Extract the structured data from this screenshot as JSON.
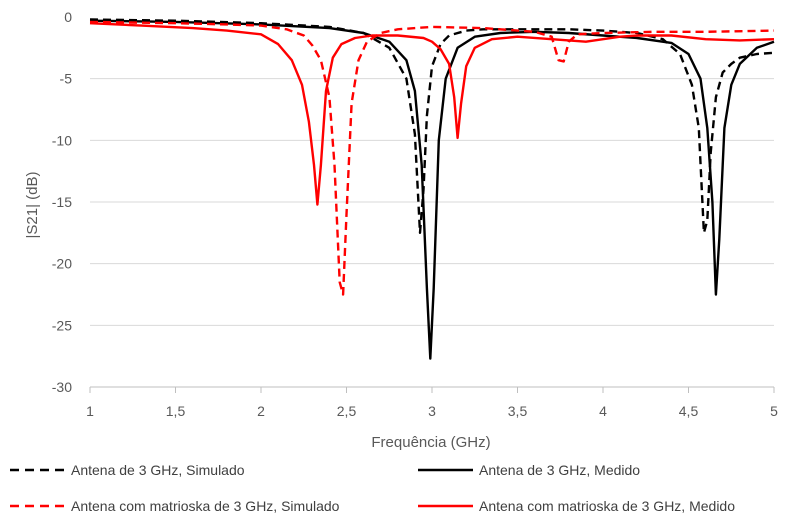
{
  "chart_data": {
    "type": "line",
    "title": "",
    "xlabel": "Frequência (GHz)",
    "ylabel": "|S21| (dB)",
    "xlim": [
      1,
      5
    ],
    "ylim": [
      -30,
      0
    ],
    "x_ticks": [
      "1",
      "1,5",
      "2",
      "2,5",
      "3",
      "3,5",
      "4",
      "4,5",
      "5"
    ],
    "y_ticks": [
      "0",
      "-5",
      "-10",
      "-15",
      "-20",
      "-25",
      "-30"
    ],
    "grid": "horizontal",
    "legend_position": "bottom",
    "series": [
      {
        "name": "Antena de 3 GHz, Simulado",
        "color": "#000000",
        "dash": "dashed",
        "x": [
          1.0,
          1.5,
          2.0,
          2.4,
          2.6,
          2.75,
          2.85,
          2.9,
          2.93,
          2.95,
          2.97,
          3.0,
          3.05,
          3.1,
          3.2,
          3.3,
          3.5,
          3.8,
          4.0,
          4.2,
          4.35,
          4.45,
          4.52,
          4.56,
          4.59,
          4.61,
          4.63,
          4.66,
          4.7,
          4.75,
          4.8,
          4.9,
          5.0
        ],
        "y": [
          -0.2,
          -0.3,
          -0.5,
          -0.8,
          -1.3,
          -2.5,
          -5.0,
          -9.5,
          -17.5,
          -14.0,
          -8.0,
          -4.0,
          -2.2,
          -1.5,
          -1.1,
          -1.0,
          -1.0,
          -1.0,
          -1.1,
          -1.3,
          -1.8,
          -3.0,
          -5.5,
          -9.0,
          -17.5,
          -16.5,
          -11.0,
          -6.5,
          -4.5,
          -3.8,
          -3.3,
          -3.0,
          -2.9
        ]
      },
      {
        "name": "Antena de 3 GHz, Medido",
        "color": "#000000",
        "dash": "solid",
        "x": [
          1.0,
          1.5,
          2.0,
          2.4,
          2.6,
          2.75,
          2.85,
          2.9,
          2.94,
          2.97,
          2.99,
          3.01,
          3.04,
          3.08,
          3.15,
          3.25,
          3.4,
          3.6,
          3.8,
          4.0,
          4.2,
          4.4,
          4.5,
          4.57,
          4.61,
          4.64,
          4.66,
          4.68,
          4.71,
          4.75,
          4.8,
          4.9,
          5.0
        ],
        "y": [
          -0.3,
          -0.4,
          -0.6,
          -0.9,
          -1.3,
          -2.0,
          -3.5,
          -6.0,
          -12.0,
          -22.0,
          -27.7,
          -22.0,
          -10.0,
          -5.0,
          -2.5,
          -1.6,
          -1.3,
          -1.2,
          -1.3,
          -1.5,
          -1.7,
          -2.1,
          -3.0,
          -5.0,
          -9.0,
          -15.0,
          -22.5,
          -18.0,
          -9.0,
          -5.5,
          -3.8,
          -2.5,
          -2.0
        ]
      },
      {
        "name": "Antena com matrioska de 3 GHz, Simulado",
        "color": "#ff0000",
        "dash": "dashed",
        "x": [
          1.0,
          1.5,
          1.8,
          2.0,
          2.15,
          2.25,
          2.3,
          2.35,
          2.4,
          2.43,
          2.46,
          2.48,
          2.5,
          2.53,
          2.57,
          2.62,
          2.7,
          2.8,
          3.0,
          3.3,
          3.6,
          3.7,
          3.74,
          3.77,
          3.8,
          3.85,
          4.0,
          4.3,
          4.6,
          5.0
        ],
        "y": [
          -0.4,
          -0.5,
          -0.6,
          -0.7,
          -1.0,
          -1.5,
          -2.3,
          -3.5,
          -6.5,
          -12.0,
          -21.5,
          -22.5,
          -16.0,
          -7.0,
          -3.5,
          -2.0,
          -1.3,
          -1.0,
          -0.8,
          -0.9,
          -1.2,
          -1.6,
          -3.5,
          -3.6,
          -2.0,
          -1.4,
          -1.3,
          -1.2,
          -1.2,
          -1.1
        ]
      },
      {
        "name": "Antena com matrioska de 3 GHz, Medido",
        "color": "#ff0000",
        "dash": "solid",
        "x": [
          1.0,
          1.3,
          1.6,
          1.8,
          2.0,
          2.1,
          2.18,
          2.24,
          2.28,
          2.31,
          2.33,
          2.35,
          2.38,
          2.42,
          2.47,
          2.55,
          2.65,
          2.8,
          2.95,
          3.0,
          3.05,
          3.1,
          3.13,
          3.15,
          3.17,
          3.2,
          3.25,
          3.35,
          3.5,
          3.7,
          3.9,
          4.0,
          4.1,
          4.2,
          4.4,
          4.6,
          4.8,
          5.0
        ],
        "y": [
          -0.5,
          -0.7,
          -0.9,
          -1.1,
          -1.4,
          -2.2,
          -3.5,
          -5.5,
          -8.5,
          -12.0,
          -15.2,
          -12.0,
          -6.0,
          -3.3,
          -2.2,
          -1.7,
          -1.5,
          -1.5,
          -1.7,
          -2.0,
          -2.6,
          -3.8,
          -6.5,
          -9.8,
          -7.0,
          -4.0,
          -2.5,
          -1.8,
          -1.6,
          -1.8,
          -2.0,
          -1.8,
          -1.6,
          -1.5,
          -1.5,
          -1.8,
          -1.9,
          -1.8
        ]
      }
    ]
  }
}
